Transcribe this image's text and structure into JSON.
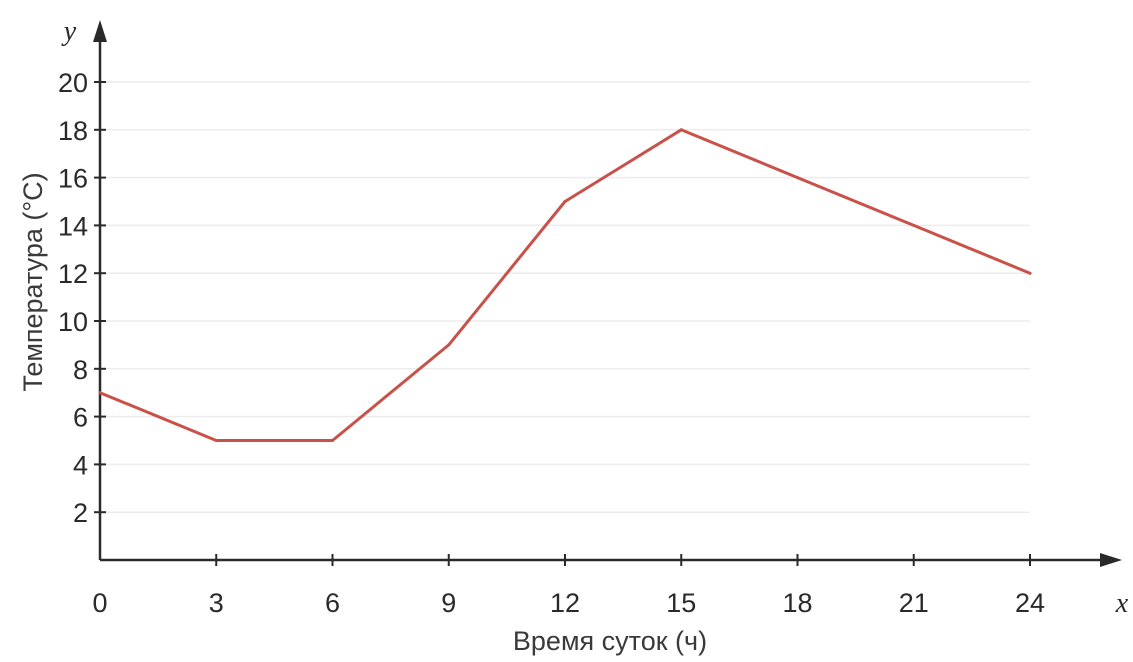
{
  "chart_data": {
    "type": "line",
    "xlabel": "Время суток (ч)",
    "ylabel": "Температура (°С)",
    "x_axis_var": "x",
    "y_axis_var": "y",
    "xlim": [
      0,
      24
    ],
    "ylim": [
      0,
      20
    ],
    "x_ticks": [
      0,
      3,
      6,
      9,
      12,
      15,
      18,
      21,
      24
    ],
    "y_ticks": [
      2,
      4,
      6,
      8,
      10,
      12,
      14,
      16,
      18,
      20
    ],
    "grid": true,
    "series": [
      {
        "color": "#c8524a",
        "x": [
          0,
          3,
          6,
          9,
          12,
          15,
          18,
          21,
          24
        ],
        "y": [
          7,
          5,
          5,
          9,
          15,
          18,
          16,
          14,
          12
        ]
      }
    ]
  }
}
